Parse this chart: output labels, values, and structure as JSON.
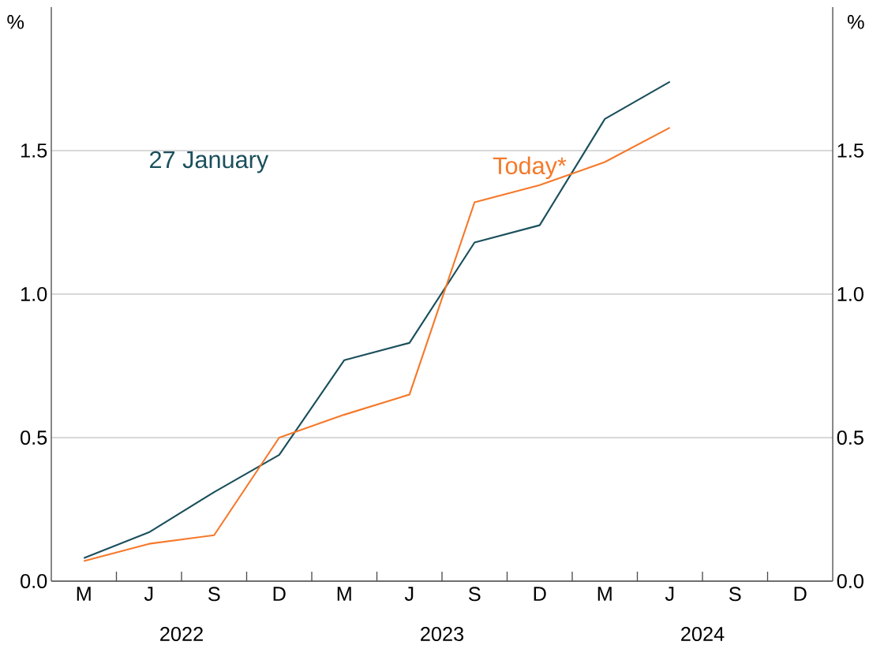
{
  "chart_data": {
    "type": "line",
    "ylabel": "%",
    "y2label": "%",
    "categories": [
      "M",
      "J",
      "S",
      "D",
      "M",
      "J",
      "S",
      "D",
      "M",
      "J",
      "S",
      "D"
    ],
    "annotations": [
      "2022",
      "2023",
      "2024"
    ],
    "ylim": [
      0,
      2
    ],
    "yticks": [
      {
        "value": 0,
        "label": "0.0"
      },
      0.5,
      {
        "value": 1,
        "label": "1.0"
      },
      1.5
    ],
    "y2lim": [
      0,
      2
    ],
    "y2ticks": [
      {
        "value": 0,
        "label": "0.0"
      },
      0.5,
      {
        "value": 1,
        "label": "1.0"
      },
      1.5
    ],
    "grid": "y",
    "legend": false,
    "series": [
      {
        "name": "27 January",
        "color": "#1b4f5c",
        "values": [
          0.08,
          0.17,
          0.31,
          0.44,
          0.77,
          0.83,
          1.18,
          1.24,
          1.61,
          1.74,
          null,
          null
        ]
      },
      {
        "name": "Today*",
        "color": "#f5792a",
        "values": [
          0.07,
          0.13,
          0.16,
          0.5,
          0.58,
          0.65,
          1.32,
          1.38,
          1.46,
          1.58,
          null,
          null
        ]
      }
    ]
  }
}
